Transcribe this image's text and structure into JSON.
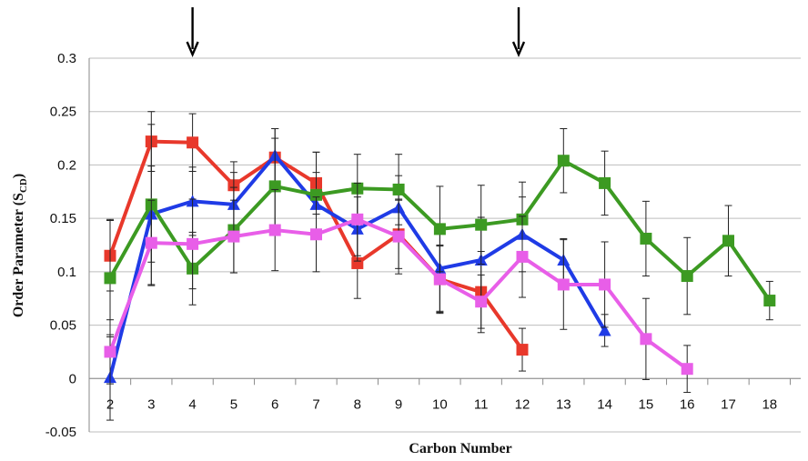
{
  "chart_data": {
    "type": "line",
    "title": "",
    "xlabel": "Carbon Number",
    "ylabel": {
      "main": "Order Parameter (S",
      "sub": "CD",
      "close": ")"
    },
    "xlim": [
      2,
      18
    ],
    "ylim": [
      -0.05,
      0.3
    ],
    "x_ticks": [
      2,
      3,
      4,
      5,
      6,
      7,
      8,
      9,
      10,
      11,
      12,
      13,
      14,
      15,
      16,
      17,
      18
    ],
    "y_ticks": [
      -0.05,
      0,
      0.05,
      0.1,
      0.15,
      0.2,
      0.25,
      0.3
    ],
    "y_tick_labels": [
      "-0.05",
      "0",
      "0.05",
      "0.1",
      "0.15",
      "0.2",
      "0.25",
      "0.3"
    ],
    "grid": true,
    "arrows_at_x": [
      4,
      12
    ],
    "series": [
      {
        "color": "#e8382b",
        "marker": "square",
        "x": [
          2,
          3,
          4,
          5,
          6,
          7,
          8,
          9,
          10,
          11,
          12
        ],
        "values": [
          0.115,
          0.222,
          0.221,
          0.181,
          0.207,
          0.183,
          0.108,
          0.135,
          0.093,
          0.081,
          0.027
        ],
        "err": [
          0.033,
          0.028,
          0.027,
          0.022,
          0.027,
          0.029,
          0.033,
          0.032,
          0.031,
          0.038,
          0.02
        ]
      },
      {
        "color": "#1f3be6",
        "marker": "triangle",
        "x": [
          2,
          3,
          4,
          5,
          6,
          7,
          8,
          9,
          10,
          11,
          12,
          13,
          14
        ],
        "values": [
          0.001,
          0.154,
          0.166,
          0.163,
          0.209,
          0.163,
          0.14,
          0.16,
          0.103,
          0.111,
          0.135,
          0.111,
          0.045
        ],
        "err": [
          0.04,
          0.045,
          0.032,
          0.03,
          0.025,
          0.03,
          0.03,
          0.03,
          0.04,
          0.04,
          0.035,
          0.02,
          0.015
        ]
      },
      {
        "color": "#3c9a22",
        "marker": "square",
        "x": [
          2,
          3,
          4,
          5,
          6,
          7,
          8,
          9,
          10,
          11,
          12,
          13,
          14,
          15,
          16,
          17,
          18
        ],
        "values": [
          0.094,
          0.163,
          0.103,
          0.139,
          0.18,
          0.172,
          0.178,
          0.177,
          0.14,
          0.144,
          0.149,
          0.204,
          0.183,
          0.131,
          0.096,
          0.129,
          0.073
        ],
        "err": [
          0.055,
          0.075,
          0.034,
          0.04,
          0.045,
          0.04,
          0.032,
          0.033,
          0.04,
          0.037,
          0.035,
          0.03,
          0.03,
          0.035,
          0.036,
          0.033,
          0.018
        ]
      },
      {
        "color": "#e85ee8",
        "marker": "square",
        "x": [
          2,
          3,
          4,
          5,
          6,
          7,
          8,
          9,
          10,
          11,
          12,
          13,
          14,
          15,
          16
        ],
        "values": [
          0.025,
          0.127,
          0.126,
          0.133,
          0.139,
          0.135,
          0.149,
          0.133,
          0.093,
          0.072,
          0.114,
          0.088,
          0.088,
          0.037,
          0.009
        ],
        "err": [
          0.03,
          0.04,
          0.042,
          0.034,
          0.038,
          0.035,
          0.034,
          0.035,
          0.032,
          0.025,
          0.038,
          0.042,
          0.04,
          0.038,
          0.022
        ]
      }
    ]
  }
}
